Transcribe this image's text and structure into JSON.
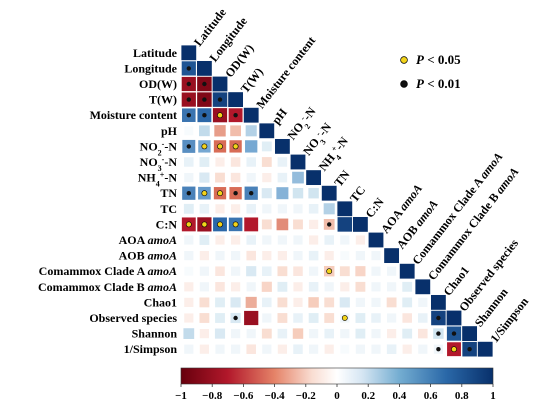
{
  "chart_data": {
    "type": "heatmap",
    "variables": [
      "Latitude",
      "Longitude",
      "OD(W)",
      "T(W)",
      "Moisture content",
      "pH",
      "NO2--N",
      "NO3--N",
      "NH4+-N",
      "TN",
      "TC",
      "C:N",
      "AOA amoA",
      "AOB amoA",
      "Comammox Clade A amoA",
      "Comammox Clade B amoA",
      "Chao1",
      "Observed species",
      "Shannon",
      "1/Simpson"
    ],
    "labels": [
      {
        "text": "Latitude"
      },
      {
        "text": "Longitude"
      },
      {
        "text": "OD(W)"
      },
      {
        "text": "T(W)"
      },
      {
        "text": "Moisture content"
      },
      {
        "text": "pH"
      },
      {
        "parts": [
          [
            "NO",
            ""
          ],
          [
            "2",
            "sub"
          ],
          [
            "-",
            "sup"
          ],
          [
            "-N",
            ""
          ]
        ]
      },
      {
        "parts": [
          [
            "NO",
            ""
          ],
          [
            "3",
            "sub"
          ],
          [
            "-",
            "sup"
          ],
          [
            "-N",
            ""
          ]
        ]
      },
      {
        "parts": [
          [
            "NH",
            ""
          ],
          [
            "4",
            "sub"
          ],
          [
            "+",
            "sup"
          ],
          [
            "-N",
            ""
          ]
        ]
      },
      {
        "text": "TN"
      },
      {
        "text": "TC"
      },
      {
        "text": "C:N"
      },
      {
        "parts": [
          [
            "AOA ",
            ""
          ],
          [
            "amoA",
            "it"
          ]
        ]
      },
      {
        "parts": [
          [
            "AOB ",
            ""
          ],
          [
            "amoA",
            "it"
          ]
        ]
      },
      {
        "parts": [
          [
            "Comammox Clade A ",
            ""
          ],
          [
            "amoA",
            "it"
          ]
        ]
      },
      {
        "parts": [
          [
            "Comammox Clade B ",
            ""
          ],
          [
            "amoA",
            "it"
          ]
        ]
      },
      {
        "text": "Chao1"
      },
      {
        "text": "Observed species"
      },
      {
        "text": "Shannon"
      },
      {
        "text": "1/Simpson"
      }
    ],
    "correlations": [
      [
        1.0
      ],
      [
        0.9,
        1.0
      ],
      [
        -0.9,
        -0.95,
        1.0
      ],
      [
        -0.9,
        -0.95,
        0.95,
        1.0
      ],
      [
        0.8,
        0.85,
        -0.9,
        -0.85,
        1.0
      ],
      [
        0.05,
        0.35,
        -0.45,
        -0.35,
        0.4,
        1.0
      ],
      [
        0.7,
        0.6,
        -0.6,
        -0.6,
        0.6,
        0.2,
        1.0
      ],
      [
        0.15,
        0.2,
        -0.1,
        -0.15,
        0.15,
        -0.2,
        0.15,
        1.0
      ],
      [
        0.1,
        0.25,
        -0.2,
        -0.15,
        0.1,
        -0.1,
        0.15,
        0.5,
        1.0
      ],
      [
        0.75,
        0.65,
        -0.6,
        -0.6,
        0.75,
        0.25,
        0.55,
        0.3,
        0.3,
        1.0
      ],
      [
        0.2,
        0.15,
        -0.1,
        -0.1,
        0.15,
        0.1,
        0.1,
        0.1,
        0.15,
        0.4,
        1.0
      ],
      [
        -0.85,
        -0.9,
        0.85,
        0.8,
        -0.85,
        -0.2,
        -0.5,
        -0.2,
        -0.1,
        -0.35,
        0.95,
        1.0
      ],
      [
        0.1,
        0.2,
        -0.1,
        -0.1,
        0.15,
        0.1,
        0.1,
        0.1,
        -0.1,
        0.15,
        0.1,
        -0.1,
        1.0
      ],
      [
        0.1,
        -0.1,
        0.1,
        0.1,
        -0.15,
        -0.1,
        -0.1,
        0.1,
        0.15,
        -0.1,
        0.05,
        0.1,
        0.1,
        1.0
      ],
      [
        0.05,
        0.1,
        -0.15,
        0.1,
        0.25,
        0.15,
        -0.2,
        -0.15,
        0.1,
        -0.3,
        -0.2,
        -0.25,
        0.1,
        0.1,
        1.0
      ],
      [
        -0.1,
        0.1,
        -0.15,
        -0.1,
        0.1,
        -0.25,
        0.2,
        -0.1,
        0.15,
        0.1,
        -0.1,
        -0.2,
        0.1,
        0.1,
        0.2,
        1.0
      ],
      [
        -0.1,
        -0.2,
        0.2,
        0.25,
        -0.4,
        0.15,
        -0.2,
        -0.1,
        -0.3,
        -0.2,
        0.25,
        0.1,
        0.1,
        -0.2,
        0.2,
        0.1,
        1.0
      ],
      [
        -0.1,
        -0.2,
        0.2,
        0.25,
        -0.9,
        0.1,
        -0.2,
        0.15,
        0.2,
        -0.2,
        0.1,
        0.2,
        0.15,
        0.1,
        -0.15,
        0.15,
        0.95,
        1.0
      ],
      [
        0.35,
        -0.1,
        0.25,
        0.1,
        0.1,
        -0.2,
        0.15,
        -0.3,
        0.1,
        0.15,
        0.1,
        0.2,
        0.1,
        -0.1,
        0.2,
        -0.15,
        0.3,
        0.9,
        1.0
      ],
      [
        0.1,
        -0.1,
        0.1,
        0.1,
        -0.15,
        0.1,
        -0.1,
        0.15,
        0.1,
        -0.1,
        0.05,
        0.1,
        0.1,
        0.15,
        -0.1,
        0.1,
        0.1,
        -0.85,
        0.95,
        1.0
      ]
    ],
    "significance": [
      [],
      [
        "p01"
      ],
      [
        "p01",
        "p01"
      ],
      [
        "p01",
        "p01",
        "p01"
      ],
      [
        "p01",
        "p01",
        "p05",
        "p01"
      ],
      [],
      [
        "p01",
        "p05",
        "p05",
        "p05"
      ],
      [],
      [],
      [
        "p01",
        "p05",
        "p05",
        "p01",
        "p01"
      ],
      [],
      [
        "p05",
        "p05",
        "p05",
        "p05",
        null,
        null,
        null,
        null,
        null,
        "p01"
      ],
      [],
      [],
      [
        null,
        null,
        null,
        null,
        null,
        null,
        null,
        null,
        null,
        "p05"
      ],
      [],
      [],
      [
        null,
        null,
        null,
        "p01",
        null,
        null,
        null,
        null,
        null,
        null,
        "p05",
        null,
        null,
        null,
        null,
        null,
        "p01"
      ],
      [
        null,
        null,
        null,
        null,
        null,
        null,
        null,
        null,
        null,
        null,
        null,
        null,
        null,
        null,
        null,
        null,
        "p01",
        "p01"
      ],
      [
        null,
        null,
        null,
        null,
        null,
        null,
        null,
        null,
        null,
        null,
        null,
        null,
        null,
        null,
        null,
        null,
        "p01",
        "p05",
        "p01"
      ]
    ],
    "colorbar": {
      "range": [
        -1,
        1
      ],
      "ticks": [
        -1,
        -0.8,
        -0.6,
        -0.4,
        -0.2,
        0,
        0.2,
        0.4,
        0.6,
        0.8,
        1
      ],
      "tick_labels": [
        "−1",
        "−0.8",
        "−0.6",
        "−0.4",
        "−0.2",
        "0",
        "0.2",
        "0.4",
        "0.6",
        "0.8",
        "1"
      ],
      "colors": {
        "negative": "#a50f15",
        "mid": "#ffffff",
        "positive": "#08306b"
      }
    },
    "legend": {
      "placement": "top-right",
      "items": [
        {
          "key": "p05",
          "label_prefix": "P",
          "label_suffix": " < 0.05",
          "color": "#f2d31b"
        },
        {
          "key": "p01",
          "label_prefix": "P",
          "label_suffix": " < 0.01",
          "color": "#111111"
        }
      ]
    }
  }
}
